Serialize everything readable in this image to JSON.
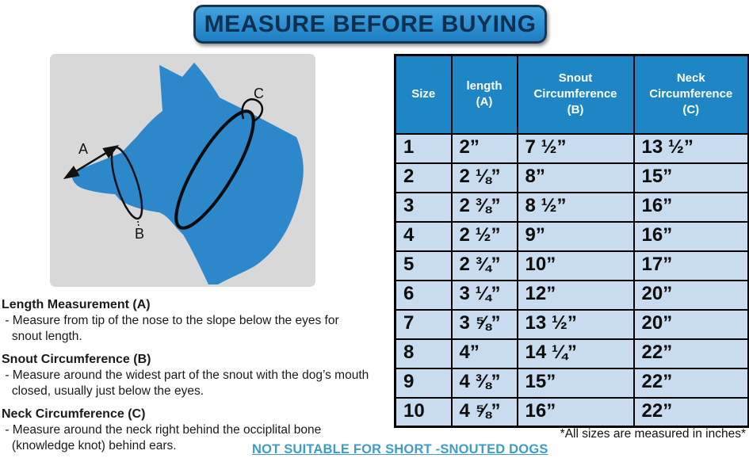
{
  "title": "MEASURE BEFORE BUYING",
  "diagram": {
    "label_a": "A",
    "label_b": "B",
    "label_c": "C"
  },
  "table": {
    "columns": [
      "Size",
      "length\n(A)",
      "Snout\nCircumference\n(B)",
      "Neck\nCircumference\n(C)"
    ],
    "rows": [
      [
        "1",
        "2”",
        "7 ½”",
        "13 ½”"
      ],
      [
        "2",
        "2 ⅛”",
        "8”",
        "15”"
      ],
      [
        "3",
        "2 ⅜”",
        "8 ½”",
        "16”"
      ],
      [
        "4",
        "2 ½”",
        "9”",
        "16”"
      ],
      [
        "5",
        "2 ¾”",
        "10”",
        "17”"
      ],
      [
        "6",
        "3 ¼”",
        "12”",
        "20”"
      ],
      [
        "7",
        "3 ⅝”",
        "13 ½”",
        "20”"
      ],
      [
        "8",
        "4”",
        "14 ¼”",
        "22”"
      ],
      [
        "9",
        "4 ⅜”",
        "15”",
        "22”"
      ],
      [
        "10",
        "4 ⅝”",
        "16”",
        "22”"
      ]
    ]
  },
  "instructions": [
    {
      "title": "Length Measurement (A)",
      "body": " - Measure from tip of the nose to the slope below the eyes for\n   snout length."
    },
    {
      "title": "Snout Circumference (B)",
      "body": " - Measure around the widest part of the snout with the dog’s mouth\n   closed, usually just below the eyes."
    },
    {
      "title": "Neck Circumference (C)",
      "body": " - Measure around the neck right behind the occiplital bone\n   (knowledge knot) behind ears."
    }
  ],
  "notes": {
    "sizes_note": "*All sizes are measured in inches*",
    "warning": "NOT SUITABLE FOR SHORT -SNOUTED DOGS"
  },
  "colors": {
    "header_bg": "#1e86c5",
    "header_text": "#ffffff",
    "row_bg": "#c9dcef",
    "table_border": "#000000",
    "dog": "#2d88cb",
    "diagram_bg": "#d8d8d8",
    "warning": "#3f9cc8",
    "banner_text": "#0e3050",
    "banner_border": "#16364d"
  }
}
